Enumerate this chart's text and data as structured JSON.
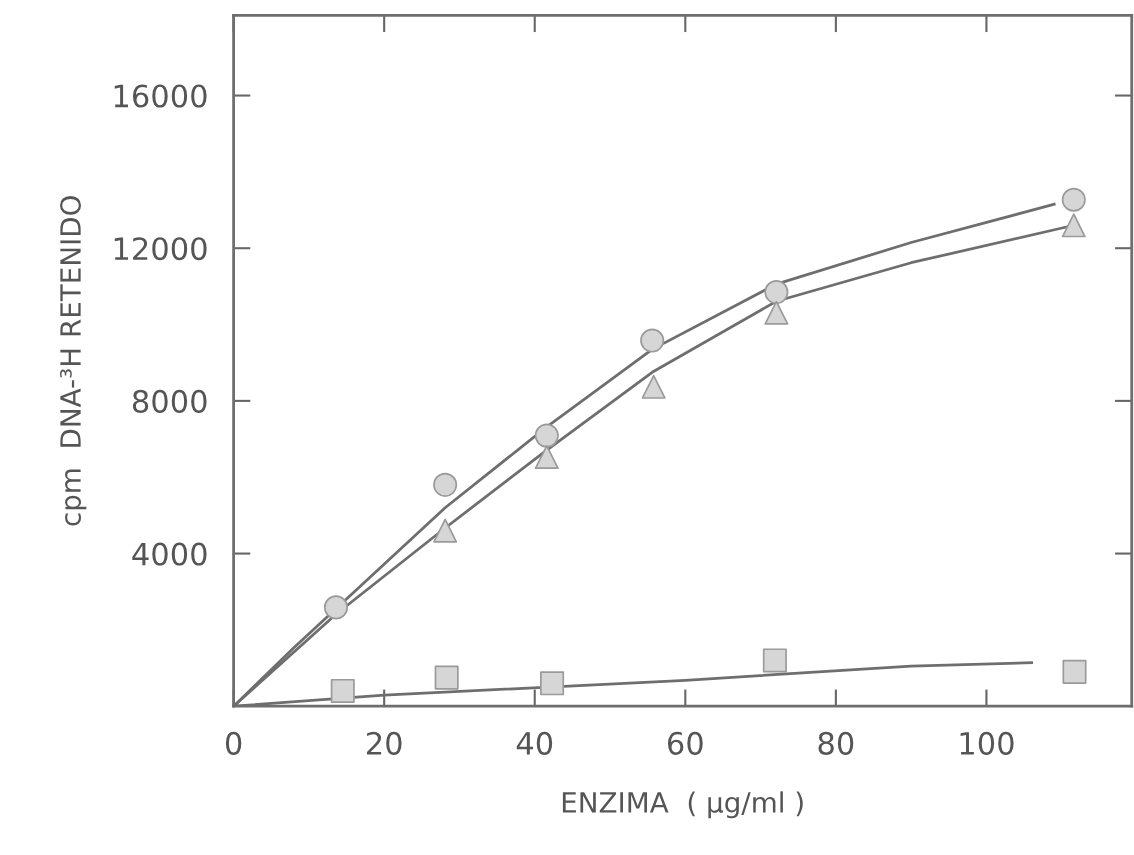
{
  "chart_data": {
    "type": "scatter",
    "xlabel": "ENZIMA  ( µg/ml )",
    "ylabel": "cpm  DNA-³H RETENIDO",
    "xlim": [
      0,
      119.3
    ],
    "ylim": [
      0,
      18100
    ],
    "xticks": [
      0,
      20,
      40,
      60,
      80,
      100
    ],
    "yticks": [
      4000,
      8000,
      12000,
      16000
    ],
    "grid": false,
    "legend": false,
    "series": [
      {
        "marker": "circle",
        "color": "#d6d6d6",
        "x": [
          13.6,
          28.1,
          41.6,
          55.6,
          72.1,
          111.6
        ],
        "values": [
          2590,
          5800,
          7090,
          9580,
          10850,
          13270
        ]
      },
      {
        "marker": "triangle",
        "color": "#d6d6d6",
        "x": [
          28.1,
          41.6,
          55.8,
          72.1,
          111.6
        ],
        "values": [
          4600,
          6530,
          8370,
          10310,
          12600
        ]
      },
      {
        "marker": "square",
        "color": "#d6d6d6",
        "x": [
          14.5,
          28.3,
          42.3,
          71.9,
          111.7
        ],
        "values": [
          400,
          750,
          600,
          1200,
          900
        ]
      },
      {
        "type": "line",
        "marker": "none",
        "line_style": "solid",
        "color": "#6e6e6e",
        "x": [
          0,
          8,
          28.1,
          41.6,
          55.6,
          72.1,
          90,
          109
        ],
        "values": [
          0,
          1530,
          5200,
          7320,
          9350,
          11060,
          12150,
          13150
        ]
      },
      {
        "type": "line",
        "marker": "none",
        "line_style": "solid",
        "color": "#6e6e6e",
        "x": [
          0,
          13.6,
          28.1,
          41.6,
          55.6,
          72.1,
          90,
          111.6
        ],
        "values": [
          0,
          2410,
          4670,
          6710,
          8750,
          10610,
          11620,
          12600
        ]
      },
      {
        "type": "line",
        "marker": "none",
        "line_style": "solid",
        "color": "#6e6e6e",
        "x": [
          0,
          20,
          60,
          90,
          106
        ],
        "values": [
          0,
          290,
          680,
          1050,
          1140
        ]
      }
    ]
  }
}
